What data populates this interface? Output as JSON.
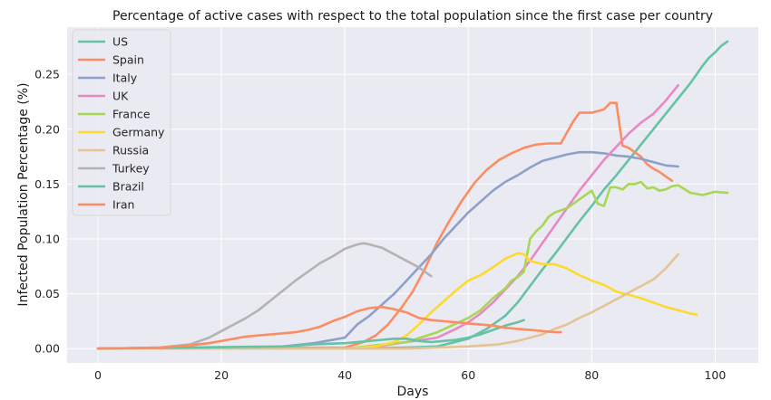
{
  "chart_data": {
    "type": "line",
    "title": "Percentage of active cases with respect to the total population since the first case per country",
    "xlabel": "Days",
    "ylabel": "Infected Population Percentage (%)",
    "xlim": [
      -5,
      107
    ],
    "ylim": [
      -0.013,
      0.293
    ],
    "x_ticks": [
      0,
      20,
      40,
      60,
      80,
      100
    ],
    "y_ticks": [
      0.0,
      0.05,
      0.1,
      0.15,
      0.2,
      0.25
    ],
    "x_tick_labels": [
      "0",
      "20",
      "40",
      "60",
      "80",
      "100"
    ],
    "y_tick_labels": [
      "0.00",
      "0.05",
      "0.10",
      "0.15",
      "0.20",
      "0.25"
    ],
    "grid": true,
    "legend_position": "top-left",
    "series": [
      {
        "name": "US",
        "color": "#66c2a5",
        "x": [
          0,
          10,
          20,
          30,
          40,
          50,
          55,
          60,
          63,
          66,
          68,
          70,
          72,
          74,
          76,
          78,
          80,
          82,
          84,
          86,
          88,
          90,
          92,
          94,
          96,
          97,
          98,
          99,
          100,
          101,
          102
        ],
        "y": [
          0,
          0,
          0,
          0,
          0,
          0.001,
          0.002,
          0.009,
          0.018,
          0.03,
          0.042,
          0.057,
          0.072,
          0.086,
          0.101,
          0.116,
          0.13,
          0.145,
          0.158,
          0.172,
          0.186,
          0.2,
          0.214,
          0.228,
          0.242,
          0.25,
          0.258,
          0.265,
          0.27,
          0.276,
          0.28
        ]
      },
      {
        "name": "Spain",
        "color": "#fc8d62",
        "x": [
          0,
          40,
          43,
          45,
          47,
          49,
          51,
          53,
          55,
          57,
          59,
          61,
          63,
          65,
          67,
          69,
          71,
          73,
          75,
          77,
          78,
          80,
          82,
          83,
          84,
          85,
          86,
          88,
          89,
          90,
          91,
          92,
          93
        ],
        "y": [
          0,
          0.001,
          0.006,
          0.012,
          0.022,
          0.036,
          0.052,
          0.073,
          0.097,
          0.117,
          0.135,
          0.151,
          0.163,
          0.172,
          0.178,
          0.183,
          0.186,
          0.187,
          0.187,
          0.207,
          0.215,
          0.215,
          0.218,
          0.224,
          0.224,
          0.185,
          0.183,
          0.175,
          0.168,
          0.164,
          0.161,
          0.157,
          0.153
        ]
      },
      {
        "name": "Italy",
        "color": "#8da0cb",
        "x": [
          0,
          20,
          30,
          35,
          40,
          42,
          44,
          46,
          48,
          50,
          52,
          54,
          56,
          58,
          60,
          62,
          64,
          66,
          68,
          70,
          72,
          74,
          76,
          78,
          80,
          82,
          84,
          86,
          88,
          90,
          92,
          94
        ],
        "y": [
          0,
          0,
          0.002,
          0.005,
          0.01,
          0.022,
          0.03,
          0.04,
          0.05,
          0.062,
          0.074,
          0.086,
          0.1,
          0.112,
          0.124,
          0.134,
          0.144,
          0.152,
          0.158,
          0.165,
          0.171,
          0.174,
          0.177,
          0.179,
          0.179,
          0.178,
          0.176,
          0.175,
          0.173,
          0.17,
          0.167,
          0.166
        ]
      },
      {
        "name": "UK",
        "color": "#e78ac3",
        "x": [
          0,
          40,
          45,
          50,
          55,
          58,
          60,
          62,
          64,
          66,
          68,
          70,
          72,
          74,
          76,
          78,
          80,
          82,
          84,
          86,
          88,
          90,
          92,
          94
        ],
        "y": [
          0,
          0,
          0.002,
          0.006,
          0.01,
          0.018,
          0.024,
          0.032,
          0.042,
          0.054,
          0.066,
          0.08,
          0.096,
          0.112,
          0.128,
          0.144,
          0.158,
          0.172,
          0.184,
          0.196,
          0.206,
          0.214,
          0.226,
          0.24
        ]
      },
      {
        "name": "France",
        "color": "#a6d854",
        "x": [
          0,
          40,
          45,
          50,
          55,
          60,
          62,
          64,
          66,
          67,
          68,
          69,
          70,
          71,
          72,
          73,
          74,
          76,
          78,
          80,
          81,
          82,
          83,
          84,
          85,
          86,
          87,
          88,
          89,
          90,
          91,
          92,
          93,
          94,
          96,
          98,
          100,
          102
        ],
        "y": [
          0,
          0,
          0.003,
          0.006,
          0.015,
          0.028,
          0.035,
          0.046,
          0.055,
          0.062,
          0.065,
          0.07,
          0.1,
          0.107,
          0.112,
          0.12,
          0.124,
          0.128,
          0.136,
          0.144,
          0.132,
          0.13,
          0.147,
          0.147,
          0.145,
          0.15,
          0.15,
          0.152,
          0.146,
          0.147,
          0.144,
          0.145,
          0.148,
          0.149,
          0.142,
          0.14,
          0.143,
          0.142
        ]
      },
      {
        "name": "Germany",
        "color": "#ffd92f",
        "x": [
          0,
          40,
          45,
          48,
          50,
          52,
          54,
          56,
          58,
          60,
          62,
          64,
          66,
          68,
          69,
          70,
          72,
          74,
          76,
          78,
          80,
          82,
          84,
          86,
          88,
          90,
          92,
          94,
          96,
          97
        ],
        "y": [
          0,
          0,
          0.002,
          0.006,
          0.012,
          0.022,
          0.033,
          0.043,
          0.053,
          0.062,
          0.067,
          0.074,
          0.082,
          0.087,
          0.086,
          0.08,
          0.077,
          0.077,
          0.073,
          0.067,
          0.062,
          0.058,
          0.052,
          0.049,
          0.046,
          0.042,
          0.038,
          0.035,
          0.032,
          0.031
        ]
      },
      {
        "name": "Russia",
        "color": "#e5c494",
        "x": [
          0,
          40,
          50,
          60,
          65,
          68,
          70,
          72,
          74,
          76,
          78,
          80,
          82,
          84,
          86,
          88,
          90,
          92,
          94
        ],
        "y": [
          0,
          0,
          0,
          0.002,
          0.004,
          0.007,
          0.01,
          0.013,
          0.018,
          0.022,
          0.028,
          0.033,
          0.039,
          0.045,
          0.051,
          0.057,
          0.063,
          0.073,
          0.086
        ]
      },
      {
        "name": "Turkey",
        "color": "#b3b3b3",
        "x": [
          0,
          10,
          15,
          18,
          20,
          22,
          24,
          26,
          28,
          30,
          32,
          34,
          36,
          38,
          40,
          42,
          43,
          44,
          46,
          48,
          50,
          52,
          54
        ],
        "y": [
          0,
          0.001,
          0.004,
          0.01,
          0.016,
          0.022,
          0.028,
          0.035,
          0.044,
          0.053,
          0.062,
          0.07,
          0.078,
          0.084,
          0.091,
          0.095,
          0.096,
          0.095,
          0.092,
          0.086,
          0.08,
          0.074,
          0.066
        ]
      },
      {
        "name": "Brazil",
        "color": "#66c2a5",
        "x": [
          0,
          30,
          35,
          40,
          44,
          46,
          48,
          50,
          52,
          54,
          56,
          58,
          60,
          62,
          64,
          66,
          68,
          69
        ],
        "y": [
          0,
          0.002,
          0.004,
          0.005,
          0.007,
          0.008,
          0.009,
          0.009,
          0.007,
          0.006,
          0.007,
          0.008,
          0.01,
          0.013,
          0.017,
          0.021,
          0.024,
          0.026
        ]
      },
      {
        "name": "Iran",
        "color": "#fc8d62",
        "x": [
          0,
          10,
          15,
          18,
          20,
          22,
          24,
          26,
          28,
          30,
          32,
          34,
          36,
          38,
          40,
          42,
          44,
          46,
          48,
          50,
          52,
          54,
          56,
          58,
          60,
          62,
          64,
          66,
          68,
          70,
          72,
          74,
          75
        ],
        "y": [
          0,
          0.001,
          0.003,
          0.005,
          0.007,
          0.009,
          0.011,
          0.012,
          0.013,
          0.014,
          0.015,
          0.017,
          0.02,
          0.025,
          0.029,
          0.034,
          0.037,
          0.038,
          0.036,
          0.033,
          0.028,
          0.026,
          0.025,
          0.024,
          0.023,
          0.022,
          0.021,
          0.019,
          0.018,
          0.017,
          0.016,
          0.015,
          0.015
        ]
      }
    ]
  }
}
